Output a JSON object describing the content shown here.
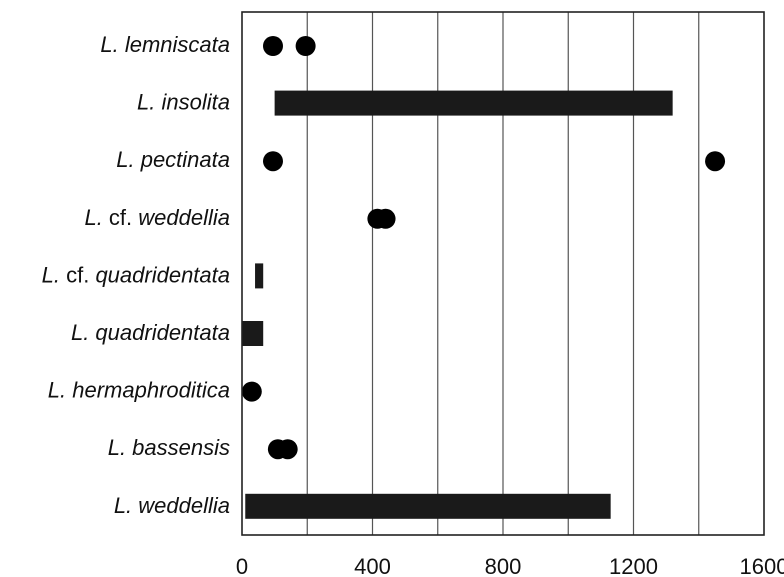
{
  "chart_data": {
    "type": "range-dot",
    "title": "",
    "xlabel": "",
    "ylabel": "",
    "xlim": [
      0,
      1600
    ],
    "xticks": [
      0,
      400,
      800,
      1200,
      1600
    ],
    "grid": "vertical",
    "categories": [
      {
        "name": [
          {
            "t": "L. lemniscata",
            "i": true
          }
        ],
        "points": [
          95,
          195
        ],
        "ranges": []
      },
      {
        "name": [
          {
            "t": "L. insolita",
            "i": true
          }
        ],
        "points": [],
        "ranges": [
          [
            100,
            1320
          ]
        ]
      },
      {
        "name": [
          {
            "t": "L. pectinata",
            "i": true
          }
        ],
        "points": [
          95,
          1450
        ],
        "ranges": []
      },
      {
        "name": [
          {
            "t": "L.",
            "i": true
          },
          {
            "t": " cf. ",
            "i": false
          },
          {
            "t": "weddellia",
            "i": true
          }
        ],
        "points": [
          415,
          440
        ],
        "ranges": []
      },
      {
        "name": [
          {
            "t": "L.",
            "i": true
          },
          {
            "t": " cf. ",
            "i": false
          },
          {
            "t": "quadridentata",
            "i": true
          }
        ],
        "points": [],
        "ranges": [
          [
            40,
            65
          ]
        ]
      },
      {
        "name": [
          {
            "t": "L. quadridentata",
            "i": true
          }
        ],
        "points": [],
        "ranges": [
          [
            0,
            65
          ]
        ]
      },
      {
        "name": [
          {
            "t": "L. hermaphroditica",
            "i": true
          }
        ],
        "points": [
          30
        ],
        "ranges": []
      },
      {
        "name": [
          {
            "t": "L. bassensis",
            "i": true
          }
        ],
        "points": [
          110,
          140
        ],
        "ranges": []
      },
      {
        "name": [
          {
            "t": "L. weddellia",
            "i": true
          }
        ],
        "points": [],
        "ranges": [
          [
            10,
            1130
          ]
        ]
      }
    ]
  }
}
